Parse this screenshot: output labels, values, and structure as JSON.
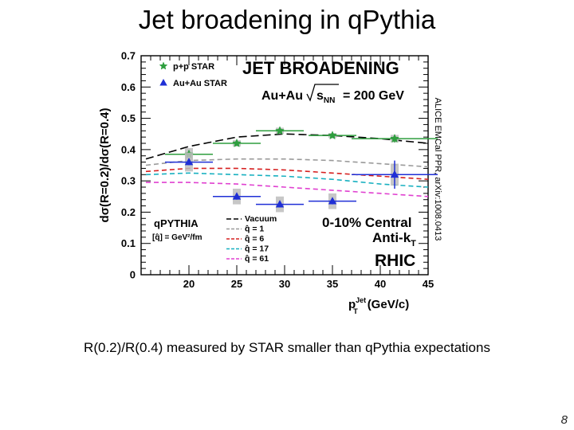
{
  "slide": {
    "title": "Jet broadening in q",
    "title_tail": "Pythia",
    "caption": "R(0.2)/R(0.4) measured by STAR smaller than qPythia expectations",
    "page_number": "8"
  },
  "chart_data": {
    "type": "scatter",
    "title": "JET BROADENING",
    "system_label": "Au+Au",
    "energy_label": "= 200 GeV",
    "sqrt_s_label": "s",
    "sqrt_s_sub": "NN",
    "centrality_label": "0-10% Central",
    "algorithm_label": "Anti-k",
    "algorithm_sub": "T",
    "collider_label": "RHIC",
    "side_label": "ALICE EMCal PPR, arXiv:1008.0413",
    "ylabel": "dσ(R=0.2)/dσ(R=0.4)",
    "xlabel": "p",
    "xlabel_sup": "Jet",
    "xlabel_sub": "T",
    "xlabel_units": "(GeV/c)",
    "xlim": [
      15,
      45
    ],
    "ylim": [
      0,
      0.7
    ],
    "xticks": [
      "20",
      "25",
      "30",
      "35",
      "40",
      "45"
    ],
    "yticks": [
      "0",
      "0.1",
      "0.2",
      "0.3",
      "0.4",
      "0.5",
      "0.6",
      "0.7"
    ],
    "legend_top": [
      {
        "label": "p+p STAR",
        "symbol": "star",
        "color": "#2e9e3e"
      },
      {
        "label": "Au+Au STAR",
        "symbol": "triangle",
        "color": "#1f2fd6"
      }
    ],
    "model_label_main": "qPYTHIA",
    "model_label_units": "[q̂] = GeV²/fm",
    "curve_legend": [
      {
        "label": "Vacuum",
        "color": "#000000",
        "dash": "10,5"
      },
      {
        "label": "q̂ = 1",
        "color": "#9a9a9a",
        "dash": "6,4"
      },
      {
        "label": "q̂ = 6",
        "color": "#d62020",
        "dash": "6,4"
      },
      {
        "label": "q̂ = 17",
        "color": "#18b0c0",
        "dash": "6,4"
      },
      {
        "label": "q̂ = 61",
        "color": "#e040d0",
        "dash": "6,4"
      }
    ],
    "series": [
      {
        "name": "p+p STAR",
        "color": "#2e9e3e",
        "marker": "star",
        "x": [
          20,
          25,
          29.5,
          35,
          41.5
        ],
        "y": [
          0.385,
          0.42,
          0.46,
          0.445,
          0.435
        ],
        "xerr": [
          2.5,
          2.5,
          2.5,
          2.5,
          4.5
        ],
        "yerr": [
          0.008,
          0.008,
          0.008,
          0.008,
          0.012
        ],
        "syst": [
          0.02,
          0.01,
          0.01,
          0.008,
          0.012
        ]
      },
      {
        "name": "Au+Au STAR",
        "color": "#1f2fd6",
        "marker": "triangle",
        "x": [
          20,
          25,
          29.5,
          35,
          41.5
        ],
        "y": [
          0.36,
          0.25,
          0.225,
          0.235,
          0.32
        ],
        "xerr": [
          2.5,
          2.5,
          2.5,
          2.5,
          4.5
        ],
        "yerr": [
          0.01,
          0.01,
          0.01,
          0.01,
          0.045
        ],
        "syst": [
          0.03,
          0.025,
          0.025,
          0.025,
          0.035
        ]
      }
    ],
    "curves": [
      {
        "name": "Vacuum",
        "color": "#000000",
        "dash": "10,5",
        "x": [
          15.5,
          20,
          25,
          30,
          35,
          40,
          45
        ],
        "y": [
          0.37,
          0.41,
          0.44,
          0.45,
          0.445,
          0.435,
          0.42
        ]
      },
      {
        "name": "q̂ = 1",
        "color": "#9a9a9a",
        "dash": "6,4",
        "x": [
          15.5,
          20,
          25,
          30,
          35,
          40,
          45
        ],
        "y": [
          0.35,
          0.365,
          0.37,
          0.37,
          0.365,
          0.355,
          0.345
        ]
      },
      {
        "name": "q̂ = 6",
        "color": "#d62020",
        "dash": "6,4",
        "x": [
          15.5,
          20,
          25,
          30,
          35,
          40,
          45
        ],
        "y": [
          0.33,
          0.34,
          0.34,
          0.335,
          0.325,
          0.315,
          0.305
        ]
      },
      {
        "name": "q̂ = 17",
        "color": "#18b0c0",
        "dash": "6,4",
        "x": [
          15.5,
          20,
          25,
          30,
          35,
          40,
          45
        ],
        "y": [
          0.32,
          0.325,
          0.32,
          0.315,
          0.305,
          0.29,
          0.28
        ]
      },
      {
        "name": "q̂ = 61",
        "color": "#e040d0",
        "dash": "6,4",
        "x": [
          15.5,
          20,
          25,
          30,
          35,
          40,
          45
        ],
        "y": [
          0.295,
          0.295,
          0.29,
          0.28,
          0.27,
          0.26,
          0.25
        ]
      }
    ]
  }
}
